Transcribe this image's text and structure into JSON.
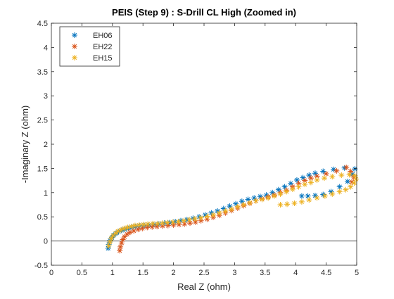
{
  "chart_data": {
    "type": "scatter",
    "title": "PEIS (Step 9) : S-Drill CL High (Zoomed in)",
    "xlabel": "Real Z (ohm)",
    "ylabel": "-Imaginary Z (ohm)",
    "xlim": [
      0,
      5
    ],
    "ylim": [
      -0.5,
      4.5
    ],
    "xticks": [
      0,
      0.5,
      1,
      1.5,
      2,
      2.5,
      3,
      3.5,
      4,
      4.5,
      5
    ],
    "yticks": [
      -0.5,
      0,
      0.5,
      1,
      1.5,
      2,
      2.5,
      3,
      3.5,
      4,
      4.5
    ],
    "xtick_labels": [
      "0",
      "0.5",
      "1",
      "1.5",
      "2",
      "2.5",
      "3",
      "3.5",
      "4",
      "4.5",
      "5"
    ],
    "ytick_labels": [
      "-0.5",
      "0",
      "0.5",
      "1",
      "1.5",
      "2",
      "2.5",
      "3",
      "3.5",
      "4",
      "4.5"
    ],
    "reference_line_y": 0,
    "grid": false,
    "legend_position": "top-left",
    "marker": "asterisk",
    "series": [
      {
        "name": "EH06",
        "color": "#0072BD",
        "points": [
          [
            0.93,
            -0.15
          ],
          [
            0.94,
            -0.07
          ],
          [
            0.96,
            0.01
          ],
          [
            0.99,
            0.07
          ],
          [
            1.02,
            0.12
          ],
          [
            1.06,
            0.16
          ],
          [
            1.1,
            0.19
          ],
          [
            1.15,
            0.22
          ],
          [
            1.2,
            0.24
          ],
          [
            1.26,
            0.26
          ],
          [
            1.32,
            0.28
          ],
          [
            1.38,
            0.3
          ],
          [
            1.45,
            0.31
          ],
          [
            1.52,
            0.32
          ],
          [
            1.6,
            0.33
          ],
          [
            1.68,
            0.34
          ],
          [
            1.76,
            0.35
          ],
          [
            1.85,
            0.37
          ],
          [
            1.94,
            0.38
          ],
          [
            2.03,
            0.4
          ],
          [
            2.12,
            0.42
          ],
          [
            2.22,
            0.44
          ],
          [
            2.32,
            0.47
          ],
          [
            2.42,
            0.5
          ],
          [
            2.52,
            0.54
          ],
          [
            2.62,
            0.58
          ],
          [
            2.72,
            0.62
          ],
          [
            2.82,
            0.67
          ],
          [
            2.92,
            0.72
          ],
          [
            3.02,
            0.77
          ],
          [
            3.12,
            0.82
          ],
          [
            3.22,
            0.86
          ],
          [
            3.32,
            0.89
          ],
          [
            3.42,
            0.92
          ],
          [
            3.52,
            0.95
          ],
          [
            3.62,
            1.0
          ],
          [
            3.72,
            1.06
          ],
          [
            3.82,
            1.12
          ],
          [
            3.92,
            1.19
          ],
          [
            4.02,
            1.26
          ],
          [
            4.12,
            1.31
          ],
          [
            4.22,
            1.36
          ],
          [
            4.32,
            1.4
          ],
          [
            4.45,
            1.44
          ],
          [
            4.62,
            1.48
          ],
          [
            4.8,
            1.51
          ],
          [
            4.97,
            1.49
          ],
          [
            4.93,
            1.38
          ],
          [
            4.85,
            1.23
          ],
          [
            4.72,
            1.12
          ],
          [
            4.58,
            1.02
          ],
          [
            4.45,
            0.96
          ],
          [
            4.32,
            0.94
          ],
          [
            4.2,
            0.93
          ],
          [
            4.1,
            0.93
          ]
        ]
      },
      {
        "name": "EH22",
        "color": "#D95319",
        "points": [
          [
            1.12,
            -0.2
          ],
          [
            1.13,
            -0.12
          ],
          [
            1.15,
            -0.04
          ],
          [
            1.17,
            0.03
          ],
          [
            1.2,
            0.09
          ],
          [
            1.24,
            0.14
          ],
          [
            1.29,
            0.18
          ],
          [
            1.35,
            0.21
          ],
          [
            1.42,
            0.24
          ],
          [
            1.49,
            0.26
          ],
          [
            1.57,
            0.28
          ],
          [
            1.65,
            0.29
          ],
          [
            1.73,
            0.3
          ],
          [
            1.82,
            0.31
          ],
          [
            1.91,
            0.32
          ],
          [
            2.0,
            0.33
          ],
          [
            2.09,
            0.34
          ],
          [
            2.18,
            0.35
          ],
          [
            2.27,
            0.37
          ],
          [
            2.36,
            0.39
          ],
          [
            2.45,
            0.42
          ],
          [
            2.55,
            0.45
          ],
          [
            2.65,
            0.49
          ],
          [
            2.75,
            0.53
          ],
          [
            2.85,
            0.58
          ],
          [
            2.95,
            0.63
          ],
          [
            3.05,
            0.68
          ],
          [
            3.15,
            0.73
          ],
          [
            3.25,
            0.78
          ],
          [
            3.35,
            0.83
          ],
          [
            3.45,
            0.87
          ],
          [
            3.55,
            0.91
          ],
          [
            3.65,
            0.95
          ],
          [
            3.75,
            1.0
          ],
          [
            3.85,
            1.05
          ],
          [
            3.95,
            1.12
          ],
          [
            4.05,
            1.19
          ],
          [
            4.15,
            1.25
          ],
          [
            4.25,
            1.3
          ],
          [
            4.35,
            1.34
          ],
          [
            4.5,
            1.39
          ],
          [
            4.67,
            1.45
          ],
          [
            4.83,
            1.52
          ],
          [
            4.9,
            1.44
          ],
          [
            4.95,
            1.32
          ],
          [
            4.92,
            1.22
          ]
        ]
      },
      {
        "name": "EH15",
        "color": "#EDB120",
        "points": [
          [
            0.94,
            -0.1
          ],
          [
            0.96,
            -0.02
          ],
          [
            0.98,
            0.05
          ],
          [
            1.01,
            0.11
          ],
          [
            1.05,
            0.16
          ],
          [
            1.09,
            0.2
          ],
          [
            1.14,
            0.23
          ],
          [
            1.19,
            0.26
          ],
          [
            1.25,
            0.28
          ],
          [
            1.31,
            0.3
          ],
          [
            1.37,
            0.32
          ],
          [
            1.44,
            0.33
          ],
          [
            1.51,
            0.34
          ],
          [
            1.58,
            0.35
          ],
          [
            1.66,
            0.36
          ],
          [
            1.74,
            0.36
          ],
          [
            1.82,
            0.37
          ],
          [
            1.9,
            0.38
          ],
          [
            1.99,
            0.39
          ],
          [
            2.08,
            0.4
          ],
          [
            2.17,
            0.42
          ],
          [
            2.26,
            0.44
          ],
          [
            2.35,
            0.46
          ],
          [
            2.45,
            0.48
          ],
          [
            2.55,
            0.51
          ],
          [
            2.65,
            0.54
          ],
          [
            2.75,
            0.58
          ],
          [
            2.85,
            0.62
          ],
          [
            2.95,
            0.66
          ],
          [
            3.05,
            0.71
          ],
          [
            3.15,
            0.75
          ],
          [
            3.25,
            0.79
          ],
          [
            3.35,
            0.83
          ],
          [
            3.45,
            0.86
          ],
          [
            3.55,
            0.89
          ],
          [
            3.65,
            0.93
          ],
          [
            3.75,
            0.97
          ],
          [
            3.85,
            1.02
          ],
          [
            3.95,
            1.07
          ],
          [
            4.05,
            1.12
          ],
          [
            4.15,
            1.17
          ],
          [
            4.25,
            1.21
          ],
          [
            4.35,
            1.26
          ],
          [
            4.47,
            1.3
          ],
          [
            4.6,
            1.33
          ],
          [
            4.75,
            1.36
          ],
          [
            4.88,
            1.37
          ],
          [
            4.97,
            1.35
          ],
          [
            4.99,
            1.28
          ],
          [
            4.96,
            1.2
          ],
          [
            4.9,
            1.12
          ],
          [
            4.82,
            1.06
          ],
          [
            4.72,
            1.02
          ],
          [
            4.6,
            0.97
          ],
          [
            4.48,
            0.93
          ],
          [
            4.35,
            0.89
          ],
          [
            4.22,
            0.85
          ],
          [
            4.1,
            0.81
          ],
          [
            3.98,
            0.78
          ],
          [
            3.86,
            0.76
          ],
          [
            3.75,
            0.75
          ]
        ]
      }
    ]
  }
}
